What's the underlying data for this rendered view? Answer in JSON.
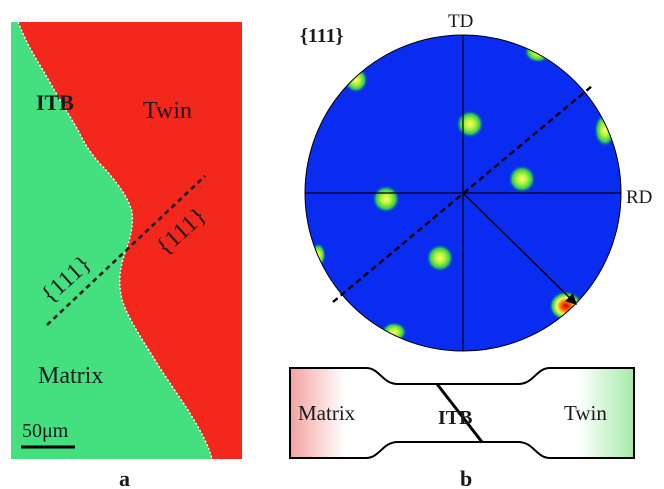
{
  "panel_a": {
    "itb_label": "ITB",
    "twin_label": "Twin",
    "matrix_label": "Matrix",
    "plane_label_left": "{111}",
    "plane_label_right": "{111}",
    "scale_bar_label": "50μm",
    "panel_letter": "a",
    "colors": {
      "matrix": "#44e07f",
      "twin": "#f3271b",
      "boundary": "#ffffff"
    }
  },
  "panel_b": {
    "pole_figure_label": "{111}",
    "td_label": "TD",
    "rd_label": "RD",
    "specimen_matrix_label": "Matrix",
    "specimen_itb_label": "ITB",
    "specimen_twin_label": "Twin",
    "panel_letter": "b",
    "colors": {
      "background": "#0a2cf0",
      "spot_core": "#f7ff6a",
      "spot_edge": "#2fd24a",
      "hot_spot": "#e01010"
    }
  }
}
